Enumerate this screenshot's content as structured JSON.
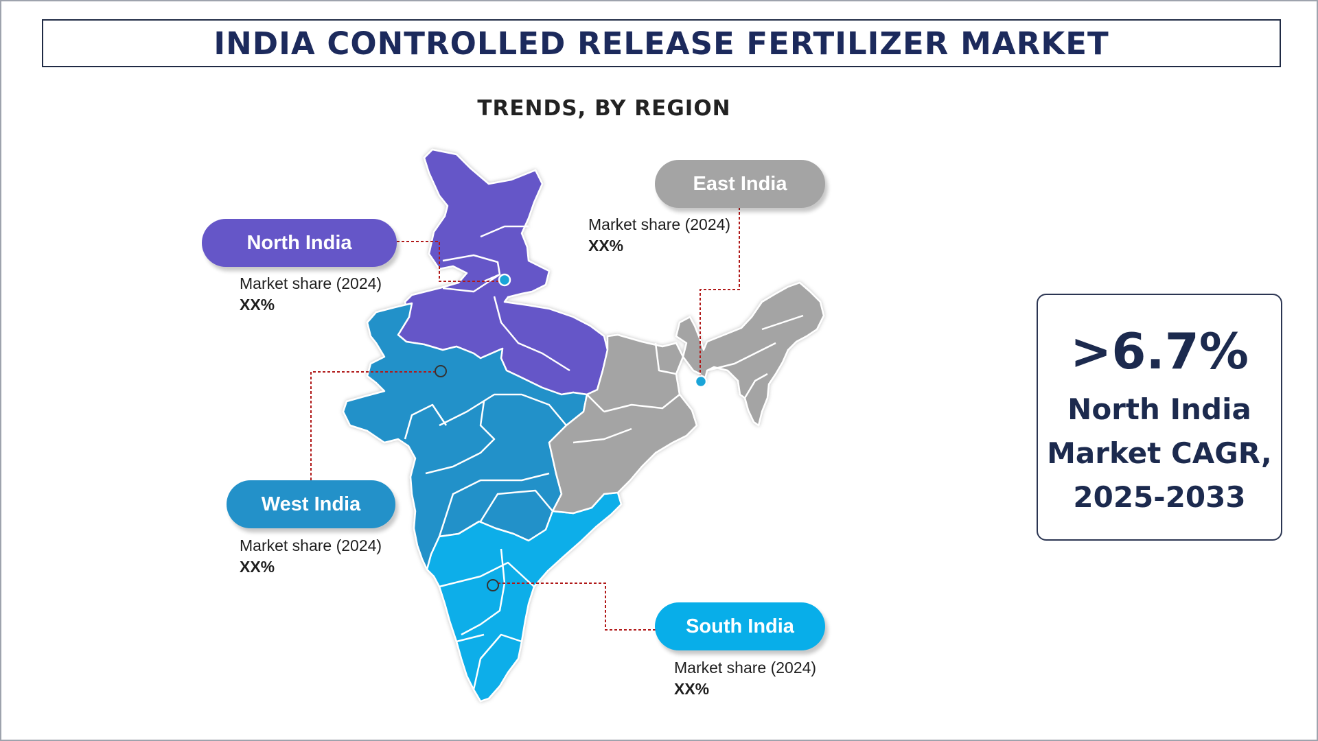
{
  "title": "INDIA CONTROLLED RELEASE FERTILIZER MARKET",
  "subtitle": "TRENDS, BY REGION",
  "colors": {
    "north": "#6556c8",
    "west": "#2391c9",
    "south": "#08aee9",
    "east": "#a4a4a4",
    "leader_line": "#b01818",
    "title_text": "#1c2a5c"
  },
  "regions": {
    "north": {
      "label": "North India",
      "share_label": "Market share (2024)",
      "share_value": "XX%"
    },
    "east": {
      "label": "East India",
      "share_label": "Market share (2024)",
      "share_value": "XX%"
    },
    "west": {
      "label": "West India",
      "share_label": "Market share (2024)",
      "share_value": "XX%"
    },
    "south": {
      "label": "South India",
      "share_label": "Market share (2024)",
      "share_value": "XX%"
    }
  },
  "cagr": {
    "value": ">6.7%",
    "line1": "North India",
    "line2": "Market CAGR,",
    "line3": "2025-2033"
  }
}
